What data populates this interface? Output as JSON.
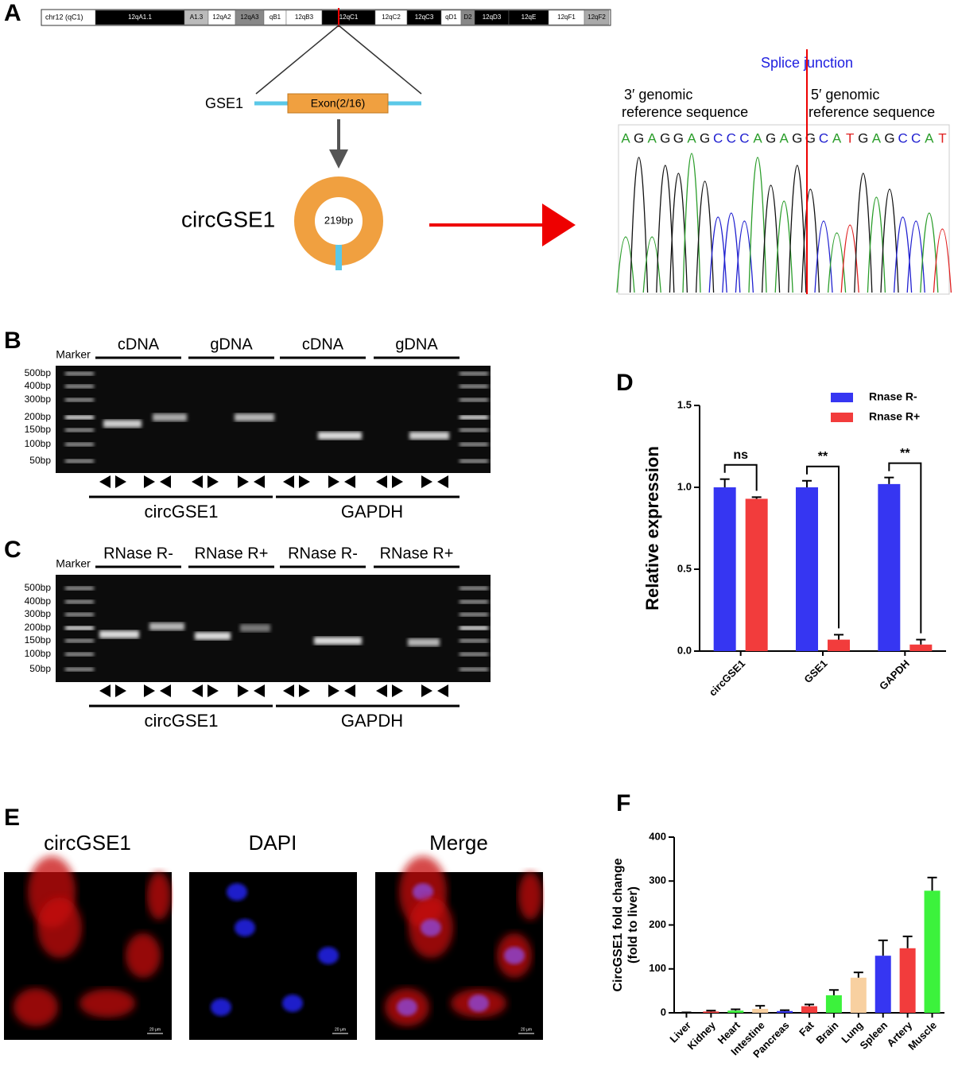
{
  "panel_a": {
    "label": "A",
    "chromosome": "chr12 (qC1)",
    "bands": [
      "12qA1.1",
      "A1.3",
      "12qA2",
      "12qA3",
      "qB1",
      "12qB3",
      "12qC1",
      "12qC2",
      "12qC3",
      "qD1",
      "D2",
      "12qD3",
      "12qE",
      "12qF1",
      "12qF2"
    ],
    "gene": "GSE1",
    "exon": "Exon(2/16)",
    "circ_name": "circGSE1",
    "circ_size": "219bp",
    "splice_label": "Splice junction",
    "left_reference": [
      "3′ genomic",
      "reference sequence"
    ],
    "right_reference": [
      "5′ genomic",
      "reference sequence"
    ],
    "sequence": [
      "A",
      "G",
      "A",
      "G",
      "G",
      "A",
      "G",
      "C",
      "C",
      "C",
      "A",
      "G",
      "A",
      "G",
      "G",
      "C",
      "A",
      "T",
      "G",
      "A",
      "G",
      "C",
      "C",
      "A",
      "T"
    ]
  },
  "panel_b": {
    "label": "B",
    "marker": "Marker",
    "lane_groups": [
      "cDNA",
      "gDNA",
      "cDNA",
      "gDNA"
    ],
    "ladder": [
      "500bp",
      "400bp",
      "300bp",
      "200bp",
      "150bp",
      "100bp",
      "50bp"
    ],
    "genes": [
      "circGSE1",
      "GAPDH"
    ]
  },
  "panel_c": {
    "label": "C",
    "marker": "Marker",
    "lane_groups": [
      "RNase R-",
      "RNase R+",
      "RNase R-",
      "RNase R+"
    ],
    "ladder": [
      "500bp",
      "400bp",
      "300bp",
      "200bp",
      "150bp",
      "100bp",
      "50bp"
    ],
    "genes": [
      "circGSE1",
      "GAPDH"
    ]
  },
  "panel_e": {
    "label": "E",
    "titles": [
      "circGSE1",
      "DAPI",
      "Merge"
    ],
    "scale_bar": "20 μm"
  },
  "chart_data": [
    {
      "type": "bar",
      "panel": "D",
      "ylabel": "Relative expression",
      "categories": [
        "circGSE1",
        "GSE1",
        "GAPDH"
      ],
      "series": [
        {
          "name": "Rnase R-",
          "color": "#3636f2",
          "values": [
            1.0,
            1.0,
            1.02
          ],
          "errors": [
            0.05,
            0.04,
            0.04
          ]
        },
        {
          "name": "Rnase R+",
          "color": "#f23c3c",
          "values": [
            0.93,
            0.07,
            0.04
          ],
          "errors": [
            0.01,
            0.03,
            0.03
          ]
        }
      ],
      "annotations": [
        "ns",
        "**",
        "**"
      ],
      "ylim": [
        0,
        1.5
      ],
      "yticks": [
        {
          "value": 0,
          "label": "0.0"
        },
        {
          "value": 0.5,
          "label": "0.5"
        },
        {
          "value": 1,
          "label": "1.0"
        },
        {
          "value": 1.5,
          "label": "1.5"
        }
      ],
      "legend": "top-right"
    },
    {
      "type": "bar",
      "panel": "F",
      "ylabel": [
        "CircGSE1 fold change",
        "(fold to liver)"
      ],
      "categories": [
        "Liver",
        "Kidney",
        "Heart",
        "Intestine",
        "Pancreas",
        "Fat",
        "Brain",
        "Lung",
        "Spleen",
        "Artery",
        "Muscle"
      ],
      "values": [
        1,
        3,
        5,
        9,
        4,
        15,
        40,
        80,
        130,
        147,
        278
      ],
      "errors": [
        0,
        2,
        3,
        7,
        2,
        4,
        12,
        12,
        35,
        27,
        30
      ],
      "colors": [
        "#000000",
        "#f23c3c",
        "#3cf23c",
        "#f8d0a0",
        "#3636f2",
        "#f23c3c",
        "#3cf23c",
        "#f8d0a0",
        "#3636f2",
        "#f23c3c",
        "#3cf23c"
      ],
      "ylim": [
        0,
        400
      ],
      "yticks": [
        0,
        100,
        200,
        300,
        400
      ]
    }
  ]
}
